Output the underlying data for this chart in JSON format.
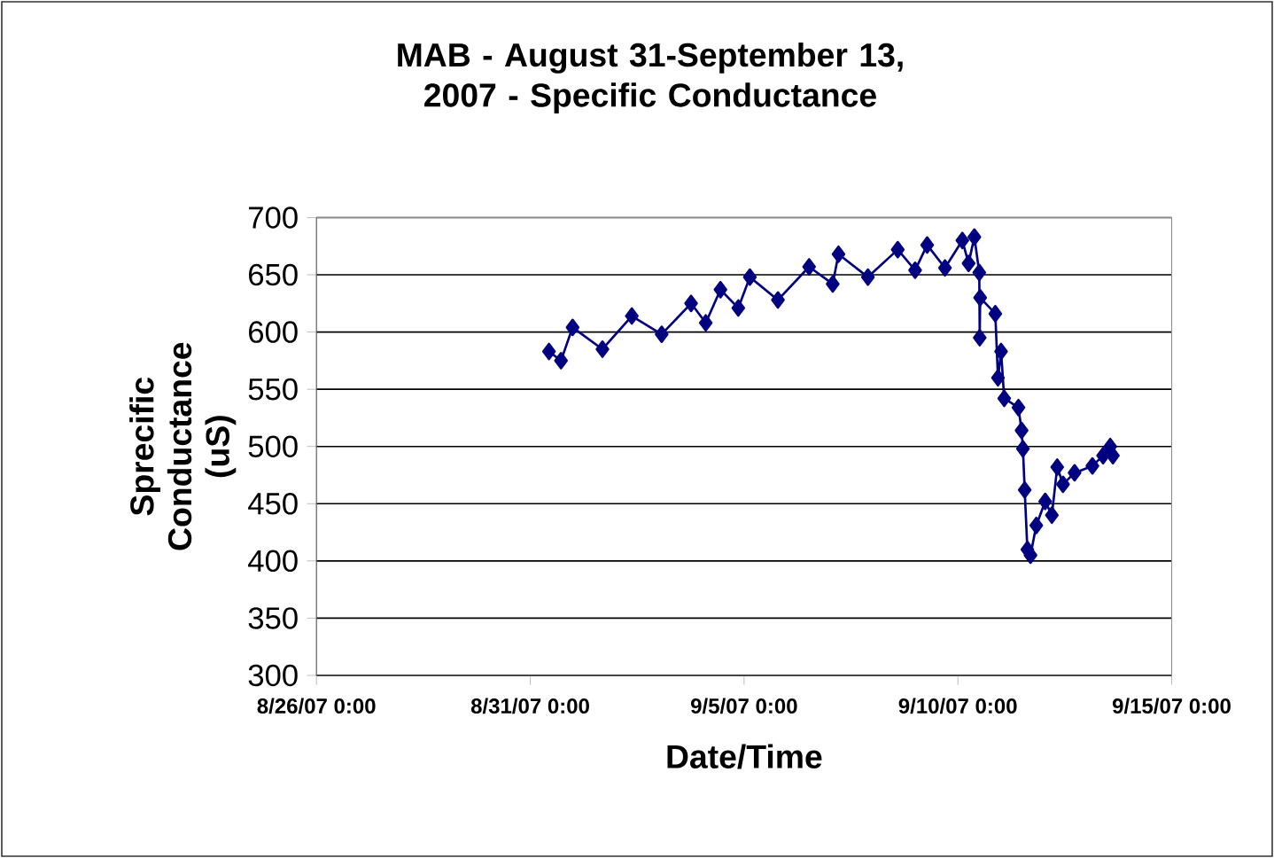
{
  "chart_data": {
    "type": "line",
    "title": "MAB - August 31-September 13, 2007 - Specific Conductance",
    "xlabel": "Date/Time",
    "ylabel": "Sprecific Conductance (uS)",
    "x": [
      "2007-08-31T10:30",
      "2007-08-31T17:15",
      "2007-08-31T23:45",
      "2007-09-01T16:30",
      "2007-09-02T09:00",
      "2007-09-03T01:45",
      "2007-09-03T18:15",
      "2007-09-04T02:30",
      "2007-09-04T10:45",
      "2007-09-04T20:45",
      "2007-09-05T03:15",
      "2007-09-05T19:00",
      "2007-09-06T12:30",
      "2007-09-07T01:45",
      "2007-09-07T05:00",
      "2007-09-07T21:30",
      "2007-09-08T14:15",
      "2007-09-09T00:00",
      "2007-09-09T06:45",
      "2007-09-09T16:45",
      "2007-09-10T02:30",
      "2007-09-10T06:00",
      "2007-09-10T09:15",
      "2007-09-10T12:00",
      "2007-09-10T12:15",
      "2007-09-10T12:30",
      "2007-09-10T21:00",
      "2007-09-10T22:30",
      "2007-09-11T00:15",
      "2007-09-11T02:00",
      "2007-09-11T10:00",
      "2007-09-11T11:45",
      "2007-09-11T12:30",
      "2007-09-11T13:30",
      "2007-09-11T15:00",
      "2007-09-11T16:45",
      "2007-09-11T20:00",
      "2007-09-12T01:00",
      "2007-09-12T04:45",
      "2007-09-12T07:45",
      "2007-09-12T11:00",
      "2007-09-12T17:30",
      "2007-09-13T03:30",
      "2007-09-13T09:30",
      "2007-09-13T13:30",
      "2007-09-13T15:00"
    ],
    "series": [
      {
        "color": "#000080",
        "values": [
          583,
          575,
          604,
          585,
          614,
          598,
          625,
          608,
          637,
          621,
          648,
          628,
          657,
          642,
          668,
          648,
          672,
          654,
          676,
          656,
          680,
          660,
          683,
          652,
          595,
          630,
          616,
          560,
          583,
          542,
          534,
          514,
          498,
          462,
          410,
          405,
          431,
          452,
          440,
          482,
          467,
          477,
          483,
          492,
          500,
          492
        ]
      }
    ],
    "xlim": [
      "2007-08-26T00:00",
      "2007-09-15T00:00"
    ],
    "xticks": [
      {
        "value": "2007-08-26T00:00",
        "label": "8/26/07 0:00"
      },
      {
        "value": "2007-08-31T00:00",
        "label": "8/31/07 0:00"
      },
      {
        "value": "2007-09-05T00:00",
        "label": "9/5/07 0:00"
      },
      {
        "value": "2007-09-10T00:00",
        "label": "9/10/07 0:00"
      },
      {
        "value": "2007-09-15T00:00",
        "label": "9/15/07 0:00"
      }
    ],
    "ylim": [
      300,
      700
    ],
    "yticks": [
      300,
      350,
      400,
      450,
      500,
      550,
      600,
      650,
      700
    ],
    "grid": "y",
    "legend": false,
    "marker": "diamond",
    "line_style": "solid"
  }
}
